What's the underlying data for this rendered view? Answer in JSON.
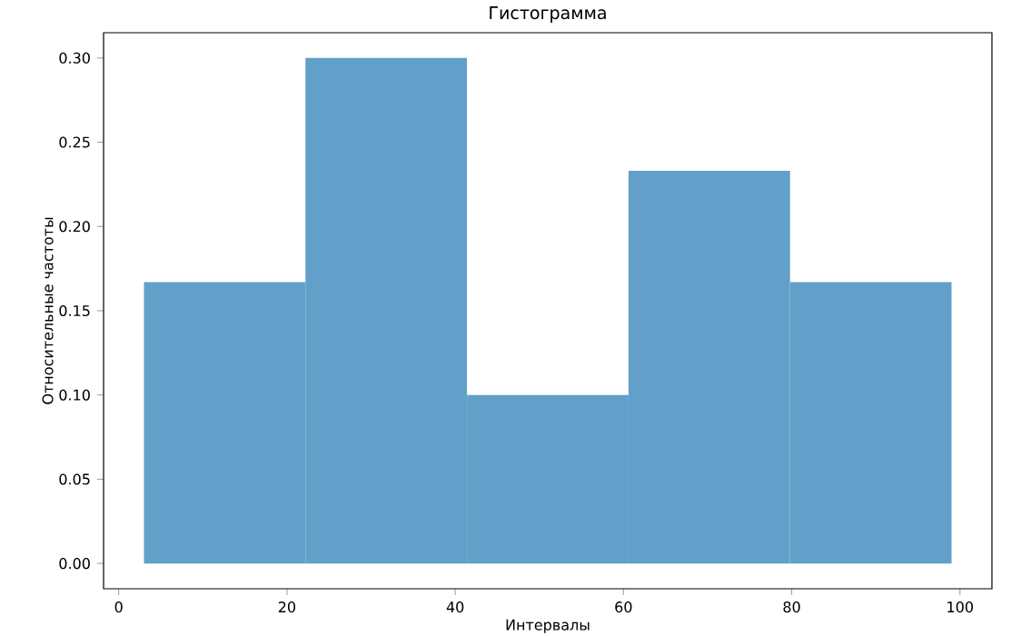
{
  "chart_data": {
    "type": "histogram",
    "title": "Гистограмма",
    "xlabel": "Интервалы",
    "ylabel": "Относительные частоты",
    "bins": [
      3.0,
      22.2,
      41.4,
      60.6,
      79.8,
      99.0
    ],
    "values": [
      0.167,
      0.3,
      0.1,
      0.233,
      0.167
    ],
    "color": "#62a0ca",
    "xlim": [
      -1.8,
      103.8
    ],
    "ylim": [
      -0.015,
      0.315
    ],
    "xticks": [
      0,
      20,
      40,
      60,
      80,
      100
    ],
    "yticks": [
      {
        "value": 0,
        "label": "0.00"
      },
      {
        "value": 0.05,
        "label": "0.05"
      },
      {
        "value": 0.1,
        "label": "0.10"
      },
      {
        "value": 0.15,
        "label": "0.15"
      },
      {
        "value": 0.2,
        "label": "0.20"
      },
      {
        "value": 0.25,
        "label": "0.25"
      },
      {
        "value": 0.3,
        "label": "0.30"
      }
    ],
    "grid": false
  }
}
